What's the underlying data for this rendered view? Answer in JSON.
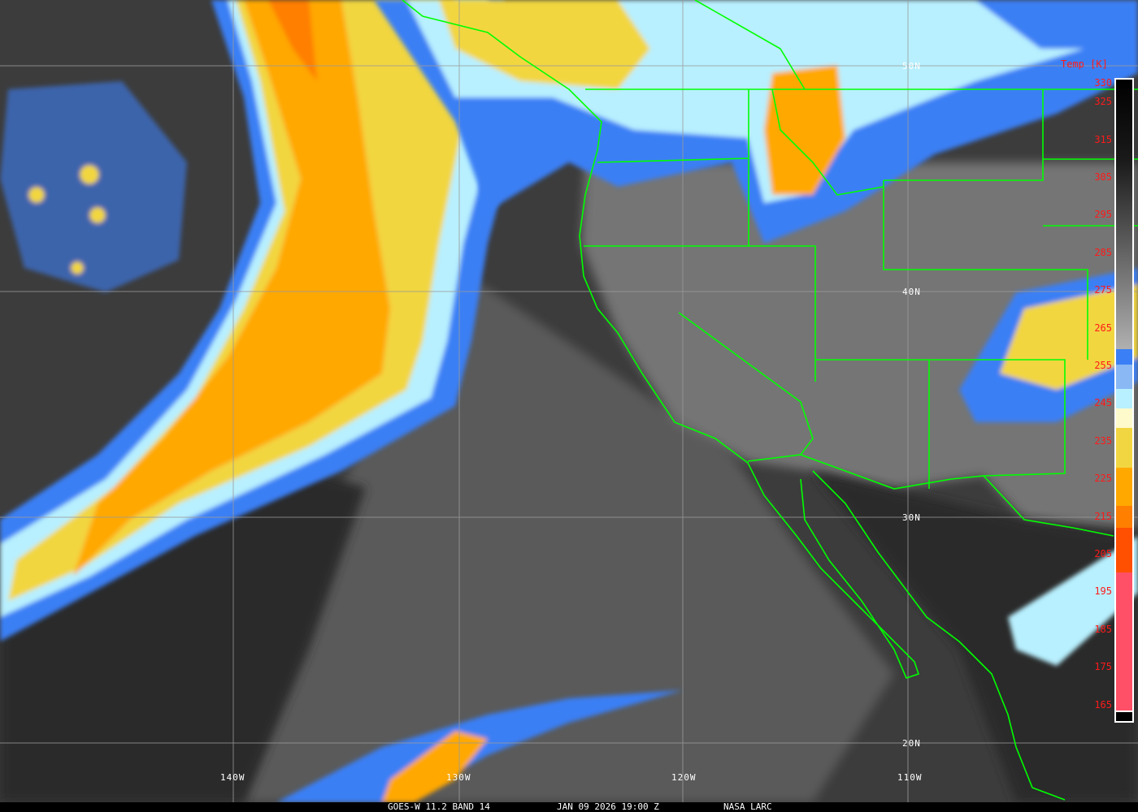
{
  "caption": {
    "satellite_band": "GOES-W 11.2 BAND 14",
    "datetime": "JAN 09 2026 19:00 Z",
    "credit": "NASA LARC"
  },
  "grid_labels": {
    "lat": [
      "50N",
      "40N",
      "30N",
      "20N"
    ],
    "lon": [
      "140W",
      "130W",
      "120W",
      "110W"
    ]
  },
  "colorbar": {
    "title": "Temp [K]",
    "ticks": [
      "330",
      "325",
      "315",
      "305",
      "295",
      "285",
      "275",
      "265",
      "255",
      "245",
      "235",
      "225",
      "215",
      "205",
      "195",
      "185",
      "175",
      "165"
    ],
    "colors": {
      "dark_blue": "#3a7ff5",
      "light_blue": "#8ab8f5",
      "pale_cyan": "#b8f0ff",
      "cream": "#fffacc",
      "yellow": "#f2d641",
      "orange": "#ffa800",
      "dark_orange": "#ff7f00",
      "red_orange": "#ff4f00",
      "pink": "#ff5068"
    }
  },
  "boundary_color": "#00ff00"
}
